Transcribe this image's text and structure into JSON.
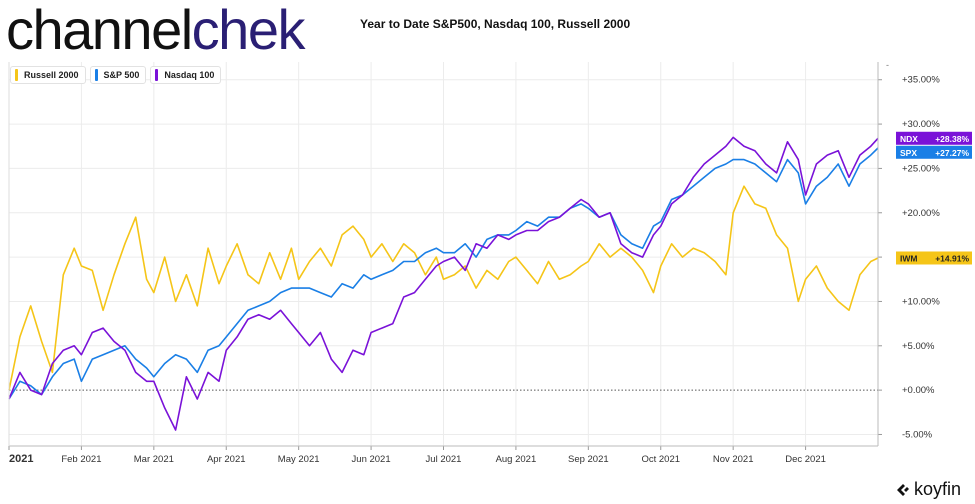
{
  "header": {
    "logo_part1": "channel",
    "logo_part2": "chek",
    "title": "Year to Date S&P500, Nasdaq 100, Russell 2000"
  },
  "legend": [
    {
      "label": "Russell 2000",
      "color": "#f5c518"
    },
    {
      "label": "S&P 500",
      "color": "#1a7fe6"
    },
    {
      "label": "Nasdaq 100",
      "color": "#7a12d8"
    }
  ],
  "brand": {
    "name": "koyfin"
  },
  "chart_data": {
    "type": "line",
    "x_axis": {
      "range": [
        0,
        12
      ],
      "ticks": [
        {
          "pos": 0,
          "label": "2021",
          "bold": true
        },
        {
          "pos": 1,
          "label": "Feb 2021"
        },
        {
          "pos": 2,
          "label": "Mar 2021"
        },
        {
          "pos": 3,
          "label": "Apr 2021"
        },
        {
          "pos": 4,
          "label": "May 2021"
        },
        {
          "pos": 5,
          "label": "Jun 2021"
        },
        {
          "pos": 6,
          "label": "Jul 2021"
        },
        {
          "pos": 7,
          "label": "Aug 2021"
        },
        {
          "pos": 8,
          "label": "Sep 2021"
        },
        {
          "pos": 9,
          "label": "Oct 2021"
        },
        {
          "pos": 10,
          "label": "Nov 2021"
        },
        {
          "pos": 11,
          "label": "Dec 2021"
        }
      ]
    },
    "y_axis": {
      "range": [
        -6.3,
        37
      ],
      "ticks": [
        {
          "value": -5,
          "label": "-5.00%"
        },
        {
          "value": 0,
          "label": "+0.00%"
        },
        {
          "value": 5,
          "label": "+5.00%"
        },
        {
          "value": 10,
          "label": "+10.00%"
        },
        {
          "value": 15,
          "label": "+15.00%"
        },
        {
          "value": 20,
          "label": "+20.00%"
        },
        {
          "value": 25,
          "label": "+25.00%"
        },
        {
          "value": 30,
          "label": "+30.00%"
        },
        {
          "value": 35,
          "label": "+35.00%"
        }
      ]
    },
    "grid": true,
    "series": [
      {
        "name": "Russell 2000",
        "color": "#f5c518",
        "tag": {
          "ticker": "IWM",
          "value": "+14.91%"
        },
        "x": [
          0,
          0.15,
          0.3,
          0.45,
          0.6,
          0.75,
          0.9,
          1.0,
          1.15,
          1.3,
          1.45,
          1.6,
          1.75,
          1.9,
          2.0,
          2.15,
          2.3,
          2.45,
          2.6,
          2.75,
          2.9,
          3.0,
          3.15,
          3.3,
          3.45,
          3.6,
          3.75,
          3.9,
          4.0,
          4.15,
          4.3,
          4.45,
          4.6,
          4.75,
          4.9,
          5.0,
          5.15,
          5.3,
          5.45,
          5.6,
          5.75,
          5.9,
          6.0,
          6.15,
          6.3,
          6.45,
          6.6,
          6.75,
          6.9,
          7.0,
          7.15,
          7.3,
          7.45,
          7.6,
          7.75,
          7.9,
          8.0,
          8.15,
          8.3,
          8.45,
          8.6,
          8.75,
          8.9,
          9.0,
          9.15,
          9.3,
          9.45,
          9.6,
          9.75,
          9.9,
          10.0,
          10.15,
          10.3,
          10.45,
          10.6,
          10.75,
          10.9,
          11.0,
          11.15,
          11.3,
          11.45,
          11.6,
          11.75,
          11.9,
          12.0
        ],
        "values": [
          0.0,
          6.0,
          9.5,
          5.5,
          2.0,
          13.0,
          16.0,
          14.0,
          13.5,
          9.0,
          13.0,
          16.5,
          19.5,
          12.5,
          11.0,
          15.0,
          10.0,
          13.0,
          9.5,
          16.0,
          12.0,
          14.0,
          16.5,
          13.0,
          12.0,
          15.5,
          12.5,
          16.0,
          12.5,
          14.5,
          16.0,
          14.0,
          17.5,
          18.5,
          17.0,
          15.0,
          16.5,
          14.5,
          16.5,
          15.5,
          13.0,
          15.0,
          12.5,
          13.0,
          14.0,
          11.5,
          13.5,
          12.5,
          14.5,
          15.0,
          13.5,
          12.0,
          14.5,
          12.5,
          13.0,
          14.0,
          14.5,
          16.5,
          15.0,
          16.0,
          15.0,
          13.5,
          11.0,
          14.0,
          16.5,
          15.0,
          16.0,
          15.5,
          14.5,
          13.0,
          20.0,
          23.0,
          21.0,
          20.5,
          17.5,
          16.0,
          10.0,
          12.5,
          14.0,
          11.5,
          10.0,
          9.0,
          13.0,
          14.5,
          14.9
        ]
      },
      {
        "name": "S&P 500",
        "color": "#1a7fe6",
        "tag": {
          "ticker": "SPX",
          "value": "+27.27%"
        },
        "x": [
          0,
          0.15,
          0.3,
          0.45,
          0.6,
          0.75,
          0.9,
          1.0,
          1.15,
          1.3,
          1.45,
          1.6,
          1.75,
          1.9,
          2.0,
          2.15,
          2.3,
          2.45,
          2.6,
          2.75,
          2.9,
          3.0,
          3.15,
          3.3,
          3.45,
          3.6,
          3.75,
          3.9,
          4.0,
          4.15,
          4.3,
          4.45,
          4.6,
          4.75,
          4.9,
          5.0,
          5.15,
          5.3,
          5.45,
          5.6,
          5.75,
          5.9,
          6.0,
          6.15,
          6.3,
          6.45,
          6.6,
          6.75,
          6.9,
          7.0,
          7.15,
          7.3,
          7.45,
          7.6,
          7.75,
          7.9,
          8.0,
          8.15,
          8.3,
          8.45,
          8.6,
          8.75,
          8.9,
          9.0,
          9.15,
          9.3,
          9.45,
          9.6,
          9.75,
          9.9,
          10.0,
          10.15,
          10.3,
          10.45,
          10.6,
          10.75,
          10.9,
          11.0,
          11.15,
          11.3,
          11.45,
          11.6,
          11.75,
          11.9,
          12.0
        ],
        "values": [
          -1.0,
          1.0,
          0.5,
          -0.5,
          1.5,
          3.0,
          3.5,
          1.0,
          3.5,
          4.0,
          4.5,
          5.0,
          3.5,
          2.5,
          1.5,
          3.0,
          4.0,
          3.5,
          2.0,
          4.5,
          5.0,
          6.0,
          7.5,
          9.0,
          9.5,
          10.0,
          11.0,
          11.5,
          11.5,
          11.5,
          11.0,
          10.5,
          12.0,
          11.5,
          13.0,
          12.5,
          13.0,
          13.5,
          14.5,
          14.5,
          15.5,
          16.0,
          15.5,
          15.5,
          16.5,
          15.0,
          17.0,
          17.5,
          17.5,
          18.0,
          19.0,
          18.5,
          19.5,
          19.5,
          20.5,
          21.0,
          20.5,
          19.5,
          20.0,
          17.5,
          16.5,
          16.0,
          18.5,
          19.0,
          21.5,
          22.0,
          23.0,
          24.0,
          25.0,
          25.5,
          26.0,
          26.0,
          25.5,
          24.5,
          23.5,
          26.0,
          24.5,
          21.0,
          23.0,
          24.0,
          25.5,
          23.0,
          25.5,
          26.5,
          27.3
        ]
      },
      {
        "name": "Nasdaq 100",
        "color": "#7a12d8",
        "tag": {
          "ticker": "NDX",
          "value": "+28.38%"
        },
        "x": [
          0,
          0.15,
          0.3,
          0.45,
          0.6,
          0.75,
          0.9,
          1.0,
          1.15,
          1.3,
          1.45,
          1.6,
          1.75,
          1.9,
          2.0,
          2.15,
          2.3,
          2.45,
          2.6,
          2.75,
          2.9,
          3.0,
          3.15,
          3.3,
          3.45,
          3.6,
          3.75,
          3.9,
          4.0,
          4.15,
          4.3,
          4.45,
          4.6,
          4.75,
          4.9,
          5.0,
          5.15,
          5.3,
          5.45,
          5.6,
          5.75,
          5.9,
          6.0,
          6.15,
          6.3,
          6.45,
          6.6,
          6.75,
          6.9,
          7.0,
          7.15,
          7.3,
          7.45,
          7.6,
          7.75,
          7.9,
          8.0,
          8.15,
          8.3,
          8.45,
          8.6,
          8.75,
          8.9,
          9.0,
          9.15,
          9.3,
          9.45,
          9.6,
          9.75,
          9.9,
          10.0,
          10.15,
          10.3,
          10.45,
          10.6,
          10.75,
          10.9,
          11.0,
          11.15,
          11.3,
          11.45,
          11.6,
          11.75,
          11.9,
          12.0
        ],
        "values": [
          -1.0,
          2.0,
          0.0,
          -0.5,
          3.0,
          4.5,
          5.0,
          4.0,
          6.5,
          7.0,
          5.5,
          4.5,
          2.0,
          1.0,
          1.0,
          -2.0,
          -4.5,
          1.5,
          -1.0,
          2.0,
          1.0,
          4.5,
          6.0,
          8.0,
          8.5,
          8.0,
          9.0,
          7.5,
          6.5,
          5.0,
          6.5,
          3.5,
          2.0,
          4.5,
          4.0,
          6.5,
          7.0,
          7.5,
          10.5,
          11.0,
          12.5,
          14.0,
          14.5,
          15.0,
          13.5,
          16.5,
          16.0,
          17.5,
          17.0,
          17.5,
          18.0,
          18.0,
          19.0,
          19.5,
          20.5,
          21.5,
          21.0,
          19.5,
          20.0,
          16.5,
          15.5,
          15.0,
          17.5,
          18.5,
          21.0,
          22.0,
          24.0,
          25.5,
          26.5,
          27.5,
          28.5,
          27.5,
          27.0,
          25.5,
          24.5,
          28.0,
          26.0,
          22.0,
          25.5,
          26.5,
          27.0,
          24.0,
          26.5,
          27.5,
          28.4
        ]
      }
    ]
  }
}
